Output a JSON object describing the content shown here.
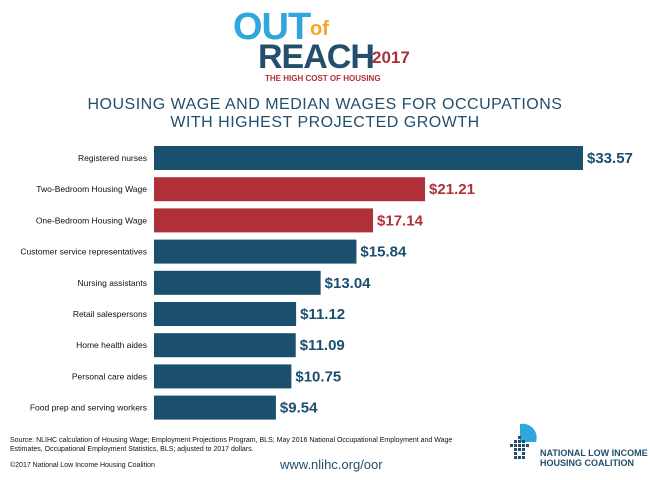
{
  "logo": {
    "out": "OUT",
    "of": "of",
    "reach": "REACH",
    "year": "2017",
    "tagline": "THE HIGH COST OF HOUSING"
  },
  "title_line1": "HOUSING WAGE AND MEDIAN WAGES FOR OCCUPATIONS",
  "title_line2": "WITH HIGHEST PROJECTED GROWTH",
  "colors": {
    "occupation": "#1b4f6e",
    "housing_wage": "#b0303a"
  },
  "chart_data": {
    "type": "bar",
    "orientation": "horizontal",
    "categories": [
      "Registered nurses",
      "Two-Bedroom Housing Wage",
      "One-Bedroom Housing Wage",
      "Customer service representatives",
      "Nursing assistants",
      "Retail salespersons",
      "Home health aides",
      "Personal care aides",
      "Food prep and serving workers"
    ],
    "values": [
      33.57,
      21.21,
      17.14,
      15.84,
      13.04,
      11.12,
      11.09,
      10.75,
      9.54
    ],
    "labels": [
      "$33.57",
      "$21.21",
      "$17.14",
      "$15.84",
      "$13.04",
      "$11.12",
      "$11.09",
      "$10.75",
      "$9.54"
    ],
    "bar_colors": [
      "#1b4f6e",
      "#b0303a",
      "#b0303a",
      "#1b4f6e",
      "#1b4f6e",
      "#1b4f6e",
      "#1b4f6e",
      "#1b4f6e",
      "#1b4f6e"
    ],
    "xlim": [
      0,
      33.57
    ],
    "grid": false,
    "legend": "none"
  },
  "source_text": "Source: NLIHC calculation of Housing Wage; Employment Projections Program, BLS; May 2016 National Occupational Employment and Wage Estimates, Occupational Employment Statistics, BLS; adjusted to 2017 dollars.",
  "copyright": "©2017 National Low Income Housing Coalition",
  "url": "www.nlihc.org/oor",
  "org_line1": "NATIONAL LOW INCOME",
  "org_line2": "HOUSING COALITION"
}
